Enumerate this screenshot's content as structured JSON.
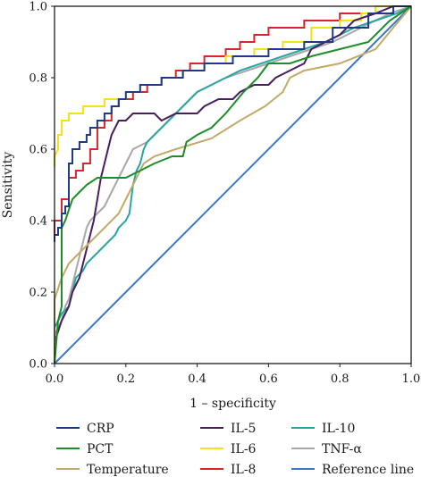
{
  "chart_data": {
    "type": "line",
    "xlabel": "1 – specificity",
    "ylabel": "Sensitivity",
    "xlim": [
      0,
      1
    ],
    "ylim": [
      0,
      1
    ],
    "xticks": [
      "0.0",
      "0.2",
      "0.4",
      "0.6",
      "0.8",
      "1.0"
    ],
    "yticks": [
      "0.0",
      "0.2",
      "0.4",
      "0.6",
      "0.8",
      "1.0"
    ],
    "grid": false,
    "legend_placement": "bottom",
    "series": [
      {
        "name": "CRP",
        "color": "#1f3a8a",
        "points": [
          [
            0,
            0.34
          ],
          [
            0,
            0.36
          ],
          [
            0.01,
            0.36
          ],
          [
            0.01,
            0.38
          ],
          [
            0.02,
            0.38
          ],
          [
            0.02,
            0.42
          ],
          [
            0.03,
            0.42
          ],
          [
            0.03,
            0.44
          ],
          [
            0.04,
            0.44
          ],
          [
            0.04,
            0.56
          ],
          [
            0.05,
            0.56
          ],
          [
            0.05,
            0.6
          ],
          [
            0.07,
            0.6
          ],
          [
            0.07,
            0.62
          ],
          [
            0.09,
            0.62
          ],
          [
            0.09,
            0.64
          ],
          [
            0.1,
            0.64
          ],
          [
            0.1,
            0.66
          ],
          [
            0.12,
            0.66
          ],
          [
            0.12,
            0.68
          ],
          [
            0.14,
            0.68
          ],
          [
            0.14,
            0.7
          ],
          [
            0.16,
            0.7
          ],
          [
            0.16,
            0.72
          ],
          [
            0.18,
            0.72
          ],
          [
            0.18,
            0.74
          ],
          [
            0.2,
            0.74
          ],
          [
            0.2,
            0.76
          ],
          [
            0.24,
            0.76
          ],
          [
            0.24,
            0.78
          ],
          [
            0.3,
            0.78
          ],
          [
            0.3,
            0.8
          ],
          [
            0.36,
            0.8
          ],
          [
            0.36,
            0.82
          ],
          [
            0.42,
            0.82
          ],
          [
            0.42,
            0.84
          ],
          [
            0.5,
            0.84
          ],
          [
            0.5,
            0.86
          ],
          [
            0.6,
            0.86
          ],
          [
            0.6,
            0.88
          ],
          [
            0.7,
            0.88
          ],
          [
            0.7,
            0.9
          ],
          [
            0.78,
            0.9
          ],
          [
            0.78,
            0.94
          ],
          [
            0.88,
            0.94
          ],
          [
            0.88,
            0.98
          ],
          [
            0.95,
            0.98
          ],
          [
            0.95,
            1.0
          ],
          [
            1,
            1
          ]
        ]
      },
      {
        "name": "PCT",
        "color": "#1e8c2a",
        "points": [
          [
            0,
            0
          ],
          [
            0.01,
            0.12
          ],
          [
            0.02,
            0.16
          ],
          [
            0.02,
            0.38
          ],
          [
            0.03,
            0.4
          ],
          [
            0.05,
            0.46
          ],
          [
            0.07,
            0.48
          ],
          [
            0.09,
            0.5
          ],
          [
            0.12,
            0.52
          ],
          [
            0.2,
            0.52
          ],
          [
            0.24,
            0.54
          ],
          [
            0.28,
            0.56
          ],
          [
            0.33,
            0.58
          ],
          [
            0.36,
            0.58
          ],
          [
            0.37,
            0.62
          ],
          [
            0.4,
            0.64
          ],
          [
            0.44,
            0.66
          ],
          [
            0.48,
            0.7
          ],
          [
            0.53,
            0.76
          ],
          [
            0.57,
            0.8
          ],
          [
            0.6,
            0.84
          ],
          [
            0.66,
            0.84
          ],
          [
            0.72,
            0.86
          ],
          [
            0.8,
            0.88
          ],
          [
            0.88,
            0.9
          ],
          [
            0.94,
            0.96
          ],
          [
            1,
            1
          ]
        ]
      },
      {
        "name": "Temperature",
        "color": "#c2aa6a",
        "points": [
          [
            0,
            0
          ],
          [
            0,
            0.18
          ],
          [
            0.02,
            0.24
          ],
          [
            0.04,
            0.28
          ],
          [
            0.06,
            0.3
          ],
          [
            0.1,
            0.34
          ],
          [
            0.14,
            0.38
          ],
          [
            0.18,
            0.42
          ],
          [
            0.21,
            0.48
          ],
          [
            0.23,
            0.52
          ],
          [
            0.25,
            0.56
          ],
          [
            0.28,
            0.58
          ],
          [
            0.34,
            0.6
          ],
          [
            0.44,
            0.63
          ],
          [
            0.52,
            0.68
          ],
          [
            0.59,
            0.72
          ],
          [
            0.64,
            0.76
          ],
          [
            0.66,
            0.8
          ],
          [
            0.7,
            0.82
          ],
          [
            0.8,
            0.84
          ],
          [
            0.9,
            0.88
          ],
          [
            0.95,
            0.94
          ],
          [
            1,
            1
          ]
        ]
      },
      {
        "name": "IL-5",
        "color": "#4a1d5e",
        "points": [
          [
            0,
            0.06
          ],
          [
            0.01,
            0.09
          ],
          [
            0.02,
            0.12
          ],
          [
            0.03,
            0.14
          ],
          [
            0.04,
            0.16
          ],
          [
            0.05,
            0.2
          ],
          [
            0.06,
            0.22
          ],
          [
            0.07,
            0.24
          ],
          [
            0.08,
            0.28
          ],
          [
            0.09,
            0.32
          ],
          [
            0.1,
            0.36
          ],
          [
            0.11,
            0.4
          ],
          [
            0.12,
            0.46
          ],
          [
            0.13,
            0.52
          ],
          [
            0.14,
            0.56
          ],
          [
            0.15,
            0.6
          ],
          [
            0.16,
            0.64
          ],
          [
            0.17,
            0.66
          ],
          [
            0.18,
            0.68
          ],
          [
            0.2,
            0.68
          ],
          [
            0.22,
            0.7
          ],
          [
            0.28,
            0.7
          ],
          [
            0.3,
            0.68
          ],
          [
            0.34,
            0.7
          ],
          [
            0.4,
            0.7
          ],
          [
            0.42,
            0.72
          ],
          [
            0.46,
            0.74
          ],
          [
            0.5,
            0.74
          ],
          [
            0.52,
            0.76
          ],
          [
            0.56,
            0.78
          ],
          [
            0.6,
            0.78
          ],
          [
            0.62,
            0.8
          ],
          [
            0.66,
            0.82
          ],
          [
            0.7,
            0.84
          ],
          [
            0.72,
            0.88
          ],
          [
            0.76,
            0.9
          ],
          [
            0.8,
            0.92
          ],
          [
            0.84,
            0.96
          ],
          [
            0.9,
            0.98
          ],
          [
            0.95,
            1.0
          ],
          [
            1,
            1
          ]
        ]
      },
      {
        "name": "IL-6",
        "color": "#f5e216",
        "points": [
          [
            0,
            0.55
          ],
          [
            0,
            0.58
          ],
          [
            0.01,
            0.6
          ],
          [
            0.01,
            0.64
          ],
          [
            0.02,
            0.64
          ],
          [
            0.02,
            0.68
          ],
          [
            0.04,
            0.68
          ],
          [
            0.04,
            0.7
          ],
          [
            0.08,
            0.7
          ],
          [
            0.08,
            0.72
          ],
          [
            0.14,
            0.72
          ],
          [
            0.14,
            0.74
          ],
          [
            0.2,
            0.74
          ],
          [
            0.2,
            0.76
          ],
          [
            0.24,
            0.76
          ],
          [
            0.24,
            0.78
          ],
          [
            0.3,
            0.78
          ],
          [
            0.3,
            0.8
          ],
          [
            0.36,
            0.8
          ],
          [
            0.36,
            0.82
          ],
          [
            0.42,
            0.82
          ],
          [
            0.42,
            0.84
          ],
          [
            0.48,
            0.84
          ],
          [
            0.48,
            0.86
          ],
          [
            0.56,
            0.86
          ],
          [
            0.56,
            0.88
          ],
          [
            0.64,
            0.88
          ],
          [
            0.64,
            0.9
          ],
          [
            0.72,
            0.9
          ],
          [
            0.72,
            0.94
          ],
          [
            0.8,
            0.94
          ],
          [
            0.8,
            0.96
          ],
          [
            0.86,
            0.96
          ],
          [
            0.86,
            0.98
          ],
          [
            0.9,
            0.98
          ],
          [
            0.9,
            1.0
          ],
          [
            1,
            1
          ]
        ]
      },
      {
        "name": "IL-8",
        "color": "#e0232b",
        "points": [
          [
            0,
            0.34
          ],
          [
            0,
            0.4
          ],
          [
            0.02,
            0.4
          ],
          [
            0.02,
            0.46
          ],
          [
            0.04,
            0.46
          ],
          [
            0.04,
            0.52
          ],
          [
            0.06,
            0.52
          ],
          [
            0.06,
            0.54
          ],
          [
            0.08,
            0.54
          ],
          [
            0.08,
            0.56
          ],
          [
            0.1,
            0.56
          ],
          [
            0.1,
            0.6
          ],
          [
            0.12,
            0.6
          ],
          [
            0.12,
            0.66
          ],
          [
            0.14,
            0.66
          ],
          [
            0.14,
            0.68
          ],
          [
            0.16,
            0.68
          ],
          [
            0.16,
            0.72
          ],
          [
            0.18,
            0.72
          ],
          [
            0.18,
            0.74
          ],
          [
            0.22,
            0.74
          ],
          [
            0.22,
            0.76
          ],
          [
            0.26,
            0.76
          ],
          [
            0.26,
            0.78
          ],
          [
            0.3,
            0.78
          ],
          [
            0.3,
            0.8
          ],
          [
            0.34,
            0.8
          ],
          [
            0.34,
            0.82
          ],
          [
            0.38,
            0.82
          ],
          [
            0.38,
            0.84
          ],
          [
            0.42,
            0.84
          ],
          [
            0.42,
            0.86
          ],
          [
            0.48,
            0.86
          ],
          [
            0.48,
            0.88
          ],
          [
            0.52,
            0.88
          ],
          [
            0.52,
            0.9
          ],
          [
            0.56,
            0.9
          ],
          [
            0.56,
            0.92
          ],
          [
            0.6,
            0.92
          ],
          [
            0.6,
            0.94
          ],
          [
            0.7,
            0.94
          ],
          [
            0.7,
            0.96
          ],
          [
            0.8,
            0.96
          ],
          [
            0.8,
            0.98
          ],
          [
            0.9,
            0.98
          ],
          [
            0.9,
            1.0
          ],
          [
            1,
            1
          ]
        ]
      },
      {
        "name": "IL-10",
        "color": "#2aa6a0",
        "points": [
          [
            0,
            0.1
          ],
          [
            0.02,
            0.14
          ],
          [
            0.04,
            0.16
          ],
          [
            0.05,
            0.2
          ],
          [
            0.06,
            0.24
          ],
          [
            0.08,
            0.26
          ],
          [
            0.09,
            0.28
          ],
          [
            0.11,
            0.3
          ],
          [
            0.13,
            0.32
          ],
          [
            0.15,
            0.34
          ],
          [
            0.17,
            0.36
          ],
          [
            0.18,
            0.38
          ],
          [
            0.2,
            0.4
          ],
          [
            0.21,
            0.42
          ],
          [
            0.22,
            0.5
          ],
          [
            0.23,
            0.54
          ],
          [
            0.24,
            0.56
          ],
          [
            0.25,
            0.6
          ],
          [
            0.26,
            0.62
          ],
          [
            0.28,
            0.64
          ],
          [
            0.3,
            0.66
          ],
          [
            0.32,
            0.68
          ],
          [
            0.34,
            0.7
          ],
          [
            0.36,
            0.72
          ],
          [
            0.38,
            0.74
          ],
          [
            0.4,
            0.76
          ],
          [
            0.44,
            0.78
          ],
          [
            0.48,
            0.8
          ],
          [
            0.52,
            0.82
          ],
          [
            0.58,
            0.84
          ],
          [
            0.64,
            0.86
          ],
          [
            0.7,
            0.88
          ],
          [
            0.76,
            0.9
          ],
          [
            0.8,
            0.92
          ],
          [
            0.84,
            0.94
          ],
          [
            0.9,
            0.96
          ],
          [
            0.96,
            0.98
          ],
          [
            1,
            1
          ]
        ]
      },
      {
        "name": "TNF-α",
        "color": "#a8a8a8",
        "points": [
          [
            0,
            0.08
          ],
          [
            0.02,
            0.12
          ],
          [
            0.03,
            0.16
          ],
          [
            0.04,
            0.18
          ],
          [
            0.05,
            0.22
          ],
          [
            0.06,
            0.26
          ],
          [
            0.07,
            0.3
          ],
          [
            0.08,
            0.34
          ],
          [
            0.09,
            0.38
          ],
          [
            0.1,
            0.4
          ],
          [
            0.12,
            0.42
          ],
          [
            0.14,
            0.44
          ],
          [
            0.16,
            0.48
          ],
          [
            0.18,
            0.52
          ],
          [
            0.2,
            0.56
          ],
          [
            0.22,
            0.6
          ],
          [
            0.26,
            0.62
          ],
          [
            0.28,
            0.64
          ],
          [
            0.3,
            0.66
          ],
          [
            0.32,
            0.68
          ],
          [
            0.34,
            0.7
          ],
          [
            0.36,
            0.72
          ],
          [
            0.38,
            0.74
          ],
          [
            0.4,
            0.76
          ],
          [
            0.44,
            0.78
          ],
          [
            0.48,
            0.8
          ],
          [
            0.54,
            0.82
          ],
          [
            0.6,
            0.84
          ],
          [
            0.66,
            0.86
          ],
          [
            0.72,
            0.88
          ],
          [
            0.78,
            0.9
          ],
          [
            0.82,
            0.92
          ],
          [
            0.86,
            0.94
          ],
          [
            0.9,
            0.96
          ],
          [
            0.94,
            0.98
          ],
          [
            1,
            1
          ]
        ]
      },
      {
        "name": "Reference line",
        "color": "#3b78c8",
        "points": [
          [
            0,
            0
          ],
          [
            1,
            1
          ]
        ]
      }
    ]
  }
}
